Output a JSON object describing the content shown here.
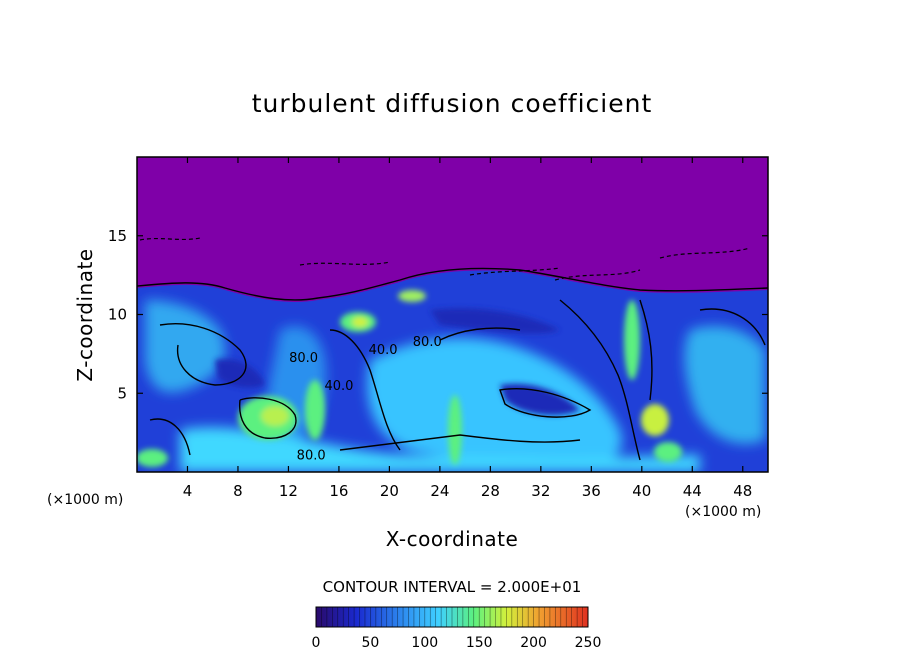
{
  "chart_data": {
    "type": "heatmap",
    "title": "turbulent diffusion coefficient",
    "xlabel": "X-coordinate",
    "ylabel": "Z-coordinate",
    "x_unit_left": "(×1000 m)",
    "x_unit_right": "(×1000 m)",
    "xlim": [
      0,
      50
    ],
    "ylim": [
      0,
      20
    ],
    "xticks": [
      4,
      8,
      12,
      16,
      20,
      24,
      28,
      32,
      36,
      40,
      44,
      48
    ],
    "yticks": [
      5,
      10,
      15
    ],
    "contour_interval_text": "CONTOUR INTERVAL = 2.000E+01",
    "contour_interval": 20,
    "colorbar": {
      "range": [
        0,
        250
      ],
      "ticks": [
        0,
        50,
        100,
        150,
        200,
        250
      ],
      "colormap": [
        "#7f00a8",
        "#2030d8",
        "#2e8cf0",
        "#3fd0ff",
        "#5cf080",
        "#d2f03c",
        "#f0a030",
        "#e03020"
      ]
    },
    "contour_labels": [
      {
        "text": "80.0",
        "x": 13.2,
        "z": 7.0
      },
      {
        "text": "40.0",
        "x": 16.0,
        "z": 5.2
      },
      {
        "text": "40.0",
        "x": 19.5,
        "z": 7.5
      },
      {
        "text": "80.0",
        "x": 23.0,
        "z": 8.0
      },
      {
        "text": "80.0",
        "x": 13.8,
        "z": 0.8
      }
    ],
    "background_region": {
      "description_value": 0,
      "color": "#7f00a8",
      "z_above": 12
    }
  }
}
